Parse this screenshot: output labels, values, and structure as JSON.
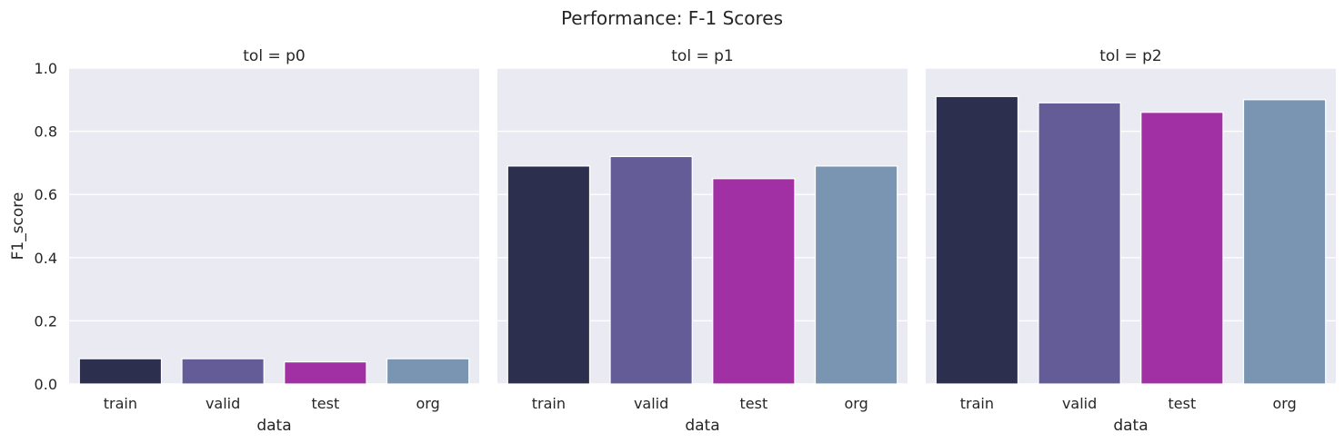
{
  "chart_data": {
    "type": "bar",
    "title": "Performance: F-1 Scores",
    "xlabel": "data",
    "ylabel": "F1_score",
    "ylim": [
      0,
      1.0
    ],
    "yticks": [
      {
        "value": 0.0,
        "label": "0.0"
      },
      {
        "value": 0.2,
        "label": "0.2"
      },
      {
        "value": 0.4,
        "label": "0.4"
      },
      {
        "value": 0.6,
        "label": "0.6"
      },
      {
        "value": 0.8,
        "label": "0.8"
      },
      {
        "value": 1.0,
        "label": "1.0"
      }
    ],
    "grid": true,
    "categories": [
      "train",
      "valid",
      "test",
      "org"
    ],
    "colors": [
      "#2d2f4e",
      "#635c96",
      "#a030a3",
      "#7995b2"
    ],
    "facets": [
      {
        "title": "tol = p0",
        "values": [
          0.08,
          0.08,
          0.07,
          0.08
        ]
      },
      {
        "title": "tol = p1",
        "values": [
          0.69,
          0.72,
          0.65,
          0.69
        ]
      },
      {
        "title": "tol = p2",
        "values": [
          0.91,
          0.89,
          0.86,
          0.9
        ]
      }
    ]
  }
}
